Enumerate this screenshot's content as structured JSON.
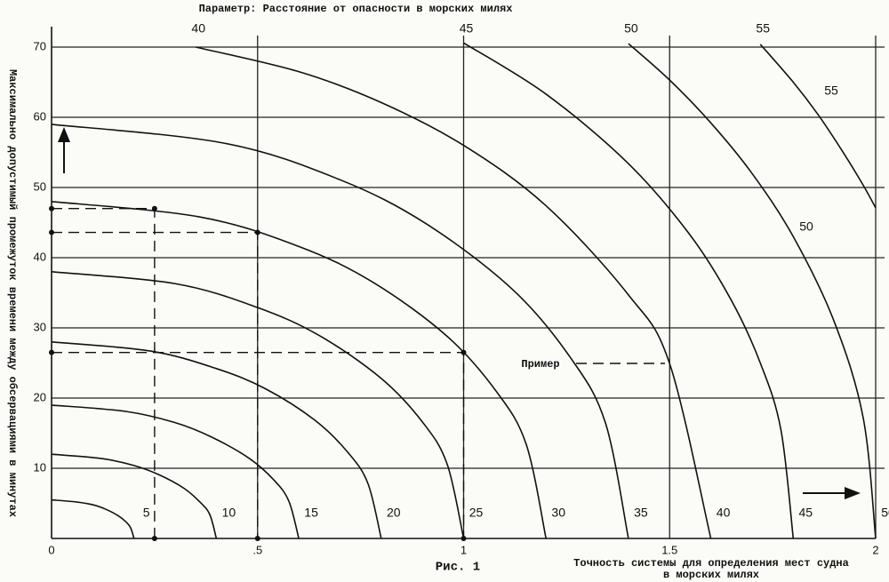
{
  "chart_data": {
    "type": "line",
    "title": "Параметр: Расстояние от опасности в морских милях",
    "ylabel": "Максимально допустимый промежуток времени между обсервациями в минутах",
    "xlabel": [
      "Точность системы для определения мест судна",
      "в морских милях"
    ],
    "caption": "Рис. 1",
    "annotation": "Пример",
    "xlim": [
      0,
      2
    ],
    "ylim": [
      0,
      70
    ],
    "xticks": [
      0,
      {
        "value": 0.5,
        "label": ".5"
      },
      1,
      1.5,
      2
    ],
    "yticks": [
      10,
      20,
      30,
      40,
      50,
      60,
      70
    ],
    "grid": true,
    "color": "#111111",
    "series": [
      {
        "name": "5",
        "x": [
          0,
          0.06,
          0.1,
          0.13,
          0.16,
          0.18,
          0.192,
          0.2
        ],
        "values": [
          5.5,
          5.2,
          4.8,
          4.2,
          3.3,
          2.4,
          1.5,
          0
        ]
      },
      {
        "name": "10",
        "x": [
          0,
          0.12,
          0.2,
          0.26,
          0.32,
          0.36,
          0.384,
          0.4
        ],
        "values": [
          12,
          11.4,
          10.4,
          9.1,
          7.2,
          5.2,
          3.4,
          0
        ]
      },
      {
        "name": "15",
        "x": [
          0,
          0.18,
          0.3,
          0.39,
          0.48,
          0.54,
          0.576,
          0.6
        ],
        "values": [
          19,
          18.1,
          16.5,
          14.4,
          11.4,
          8.3,
          5.3,
          0
        ]
      },
      {
        "name": "20",
        "x": [
          0,
          0.24,
          0.4,
          0.52,
          0.64,
          0.72,
          0.768,
          0.8
        ],
        "values": [
          28,
          26.7,
          24.2,
          21.3,
          16.8,
          12.2,
          7.8,
          0
        ]
      },
      {
        "name": "25",
        "x": [
          0,
          0.3,
          0.5,
          0.65,
          0.8,
          0.9,
          0.96,
          1
        ],
        "values": [
          38,
          36.3,
          32.9,
          28.9,
          22.8,
          16.6,
          10.6,
          0
        ]
      },
      {
        "name": "30",
        "x": [
          0,
          0.36,
          0.6,
          0.78,
          0.96,
          1.08,
          1.152,
          1.2
        ],
        "values": [
          48,
          45.8,
          41.6,
          36.5,
          28.8,
          20.9,
          13.4,
          0
        ]
      },
      {
        "name": "35",
        "x": [
          0,
          0.42,
          0.7,
          0.91,
          1.12,
          1.26,
          1.344,
          1.4
        ],
        "values": [
          59,
          56.3,
          51.1,
          44.8,
          35.4,
          25.7,
          16.5,
          0
        ]
      },
      {
        "name": "40",
        "x": [
          0.35,
          0.6,
          0.8,
          1.0,
          1.2,
          1.4,
          1.5,
          1.6
        ],
        "values": [
          70,
          66.5,
          62.1,
          56,
          47.4,
          34.7,
          24.9,
          0
        ]
      },
      {
        "name": "45",
        "x": [
          1.0,
          1.2,
          1.4,
          1.55,
          1.65,
          1.72,
          1.77,
          1.8
        ],
        "values": [
          70.6,
          63.3,
          53.4,
          43.2,
          33.9,
          25,
          15.5,
          0
        ]
      },
      {
        "name": "50",
        "x": [
          1.4,
          1.5,
          1.6,
          1.7,
          1.8,
          1.9,
          1.97,
          2.0
        ],
        "values": [
          70.5,
          65.3,
          59.2,
          52,
          43,
          30.8,
          17.1,
          0
        ]
      },
      {
        "name": "55",
        "x": [
          1.72,
          1.8,
          1.86,
          1.92,
          1.97,
          2.0
        ],
        "values": [
          70.4,
          65,
          60.4,
          55.1,
          50.3,
          47.1
        ]
      }
    ],
    "example": {
      "x": [
        0.25,
        0.5,
        1
      ],
      "values": [
        47,
        43.6,
        26.5
      ]
    }
  }
}
